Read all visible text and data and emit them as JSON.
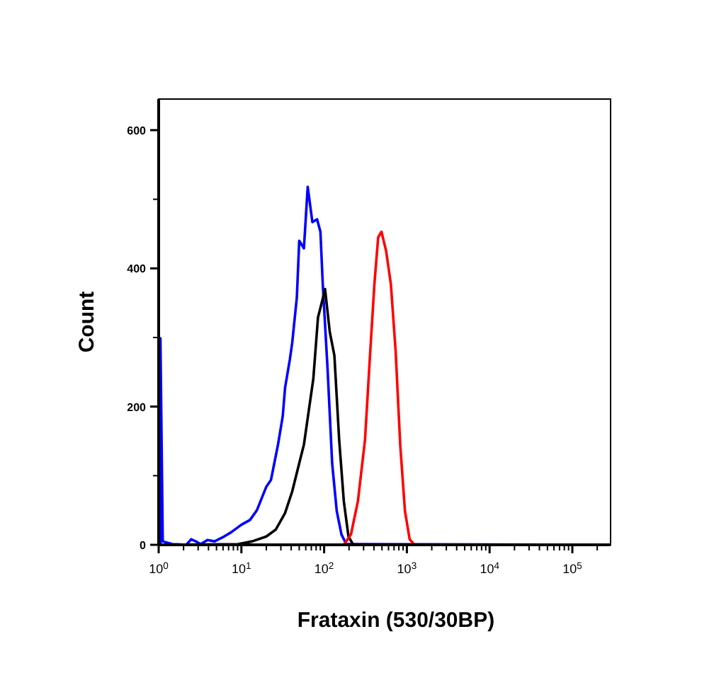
{
  "chart_data": {
    "type": "line",
    "xlabel": "Frataxin (530/30BP)",
    "ylabel": "Count",
    "log": "x",
    "marker": "none",
    "line_style": "solid",
    "grid": false,
    "xlim": [
      1,
      290000
    ],
    "ylim": [
      0,
      645
    ],
    "xticks": [
      {
        "value": 1,
        "label": "10$^{0}$"
      },
      {
        "value": 2,
        "label": null
      },
      {
        "value": 3,
        "label": null
      },
      {
        "value": 4,
        "label": null
      },
      {
        "value": 5,
        "label": null
      },
      {
        "value": 6,
        "label": null
      },
      {
        "value": 7,
        "label": null
      },
      {
        "value": 8,
        "label": null
      },
      {
        "value": 9,
        "label": null
      },
      {
        "value": 10,
        "label": "10$^{1}$"
      },
      {
        "value": 20,
        "label": null
      },
      {
        "value": 30,
        "label": null
      },
      {
        "value": 40,
        "label": null
      },
      {
        "value": 50,
        "label": null
      },
      {
        "value": 60,
        "label": null
      },
      {
        "value": 70,
        "label": null
      },
      {
        "value": 80,
        "label": null
      },
      {
        "value": 90,
        "label": null
      },
      {
        "value": 100,
        "label": "10$^{2}$"
      },
      {
        "value": 200,
        "label": null
      },
      {
        "value": 300,
        "label": null
      },
      {
        "value": 400,
        "label": null
      },
      {
        "value": 500,
        "label": null
      },
      {
        "value": 600,
        "label": null
      },
      {
        "value": 700,
        "label": null
      },
      {
        "value": 800,
        "label": null
      },
      {
        "value": 900,
        "label": null
      },
      {
        "value": 1000,
        "label": "10$^{3}$"
      },
      {
        "value": 2000,
        "label": null
      },
      {
        "value": 3000,
        "label": null
      },
      {
        "value": 4000,
        "label": null
      },
      {
        "value": 5000,
        "label": null
      },
      {
        "value": 6000,
        "label": null
      },
      {
        "value": 7000,
        "label": null
      },
      {
        "value": 8000,
        "label": null
      },
      {
        "value": 9000,
        "label": null
      },
      {
        "value": 10000,
        "label": "10$^{4}$"
      },
      {
        "value": 20000,
        "label": null
      },
      {
        "value": 30000,
        "label": null
      },
      {
        "value": 40000,
        "label": null
      },
      {
        "value": 50000,
        "label": null
      },
      {
        "value": 60000,
        "label": null
      },
      {
        "value": 70000,
        "label": null
      },
      {
        "value": 80000,
        "label": null
      },
      {
        "value": 90000,
        "label": null
      },
      {
        "value": 100000,
        "label": "10$^{5}$"
      },
      {
        "value": 200000,
        "label": null
      }
    ],
    "yticks": [
      0,
      {
        "value": 100,
        "label": null
      },
      200,
      {
        "value": 300,
        "label": null
      },
      400,
      {
        "value": 500,
        "label": null
      },
      600
    ],
    "series": [
      {
        "color": "#0000ff",
        "x": [
          1.05,
          1.05,
          1.12,
          1.46,
          2.16,
          2.47,
          2.81,
          3.21,
          3.9,
          4.74,
          6.17,
          7.5,
          10,
          12.7,
          15.4,
          20,
          22.8,
          27.7,
          31.6,
          33.7,
          38.5,
          41.1,
          46.8,
          50,
          57,
          63.3,
          72.1,
          82.2,
          90.2,
          96.2,
          110,
          125,
          142,
          162,
          185,
          290000
        ],
        "values": [
          0,
          299,
          5,
          1,
          0,
          8,
          5,
          1,
          7,
          5,
          12,
          18,
          29,
          36,
          50,
          84,
          94,
          145,
          186,
          227,
          268,
          292,
          358,
          440,
          429,
          518,
          467,
          471,
          453,
          378,
          255,
          118,
          49,
          15,
          1,
          0
        ]
      },
      {
        "color": "#000000",
        "x": [
          1,
          9.1,
          13.5,
          20,
          26,
          33.7,
          41.1,
          50,
          57,
          65,
          74,
          84.3,
          96.2,
          102.6,
          117,
          133,
          152,
          173,
          197,
          225,
          290000
        ],
        "values": [
          0,
          1,
          5,
          12,
          22,
          46,
          77,
          118,
          145,
          193,
          240,
          329,
          356,
          370,
          308,
          274,
          152,
          63,
          12,
          0,
          0
        ]
      },
      {
        "color": "#ff0000",
        "x": [
          173,
          211,
          256,
          312,
          356,
          405,
          450,
          493,
          562,
          641,
          731,
          832,
          948,
          1081,
          1233,
          290000
        ],
        "values": [
          0,
          15,
          63,
          152,
          268,
          377,
          445,
          453,
          425,
          377,
          281,
          144,
          49,
          8,
          0,
          0
        ]
      }
    ]
  }
}
